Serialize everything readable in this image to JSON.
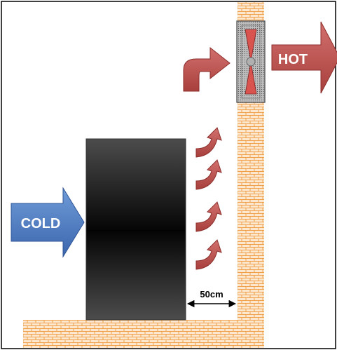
{
  "labels": {
    "cold": "COLD",
    "hot": "HOT",
    "gap": "50cm"
  },
  "colors": {
    "brick_fill": "#fde7cf",
    "brick_line": "#f0a04a",
    "cold_arrow": "#4f7fc4",
    "hot_arrow": "#c0504d",
    "cabinet_dark": "#0a0a0a",
    "cabinet_light": "#4a4a4a",
    "fan_housing": "#c8c8c8",
    "border": "#000000"
  },
  "icons": {
    "cabinet": "server-cabinet-icon",
    "fan": "exhaust-fan-icon"
  }
}
